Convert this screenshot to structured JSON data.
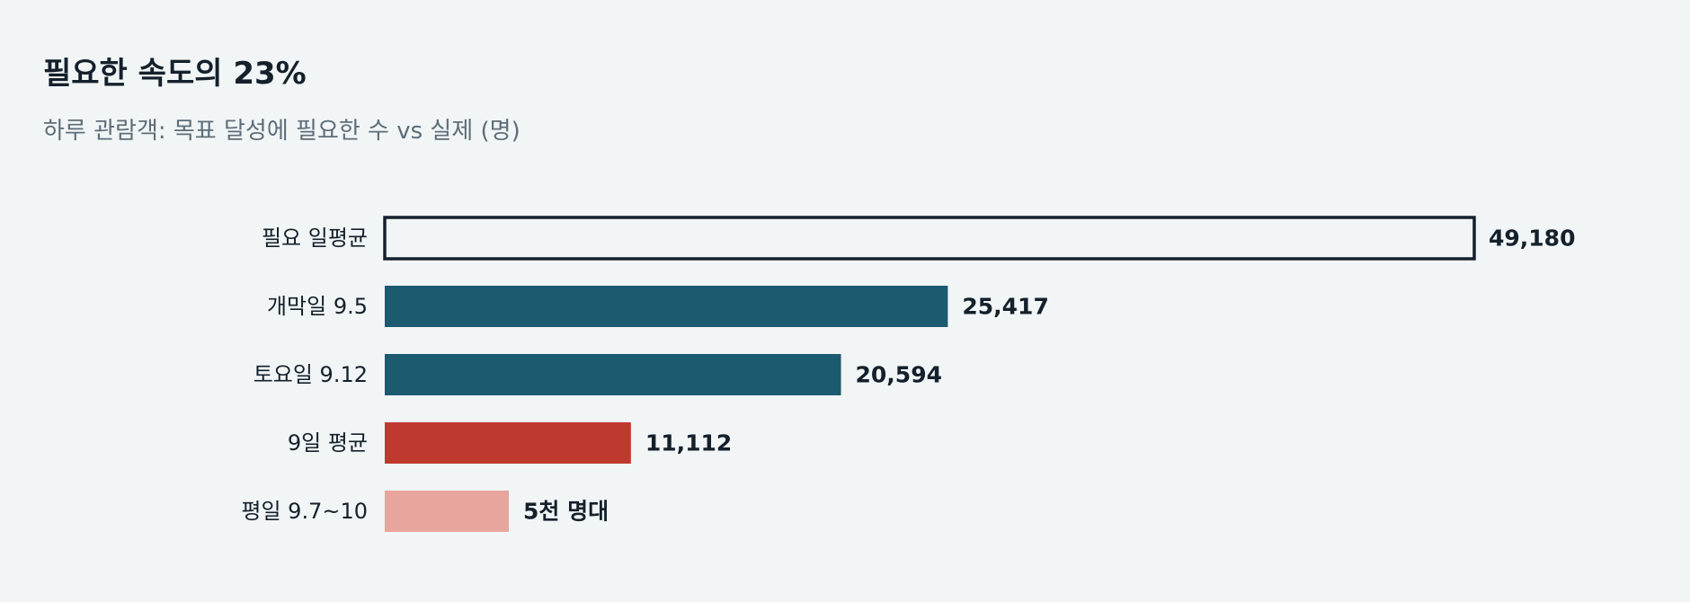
{
  "chart_data": {
    "type": "bar",
    "orientation": "horizontal",
    "title": "필요한 속도의 23%",
    "subtitle": "하루 관람객: 목표 달성에 필요한 수 vs 실제 (명)",
    "xlim": [
      0,
      49180
    ],
    "grid": false,
    "categories": [
      "필요 일평균",
      "개막일 9.5",
      "토요일 9.12",
      "9일 평균",
      "평일 9.7~10"
    ],
    "values": [
      49180,
      25417,
      20594,
      11112,
      5600
    ],
    "value_labels": [
      "49,180",
      "25,417",
      "20,594",
      "11,112",
      "5천 명대"
    ],
    "bar_styles": [
      {
        "fill": "#f1f5f6",
        "stroke": "#14202b"
      },
      {
        "fill": "#1c5a70",
        "stroke": "none"
      },
      {
        "fill": "#1c5a70",
        "stroke": "none"
      },
      {
        "fill": "#c0392e",
        "stroke": "none"
      },
      {
        "fill": "#e8a59d",
        "stroke": "none"
      }
    ]
  }
}
